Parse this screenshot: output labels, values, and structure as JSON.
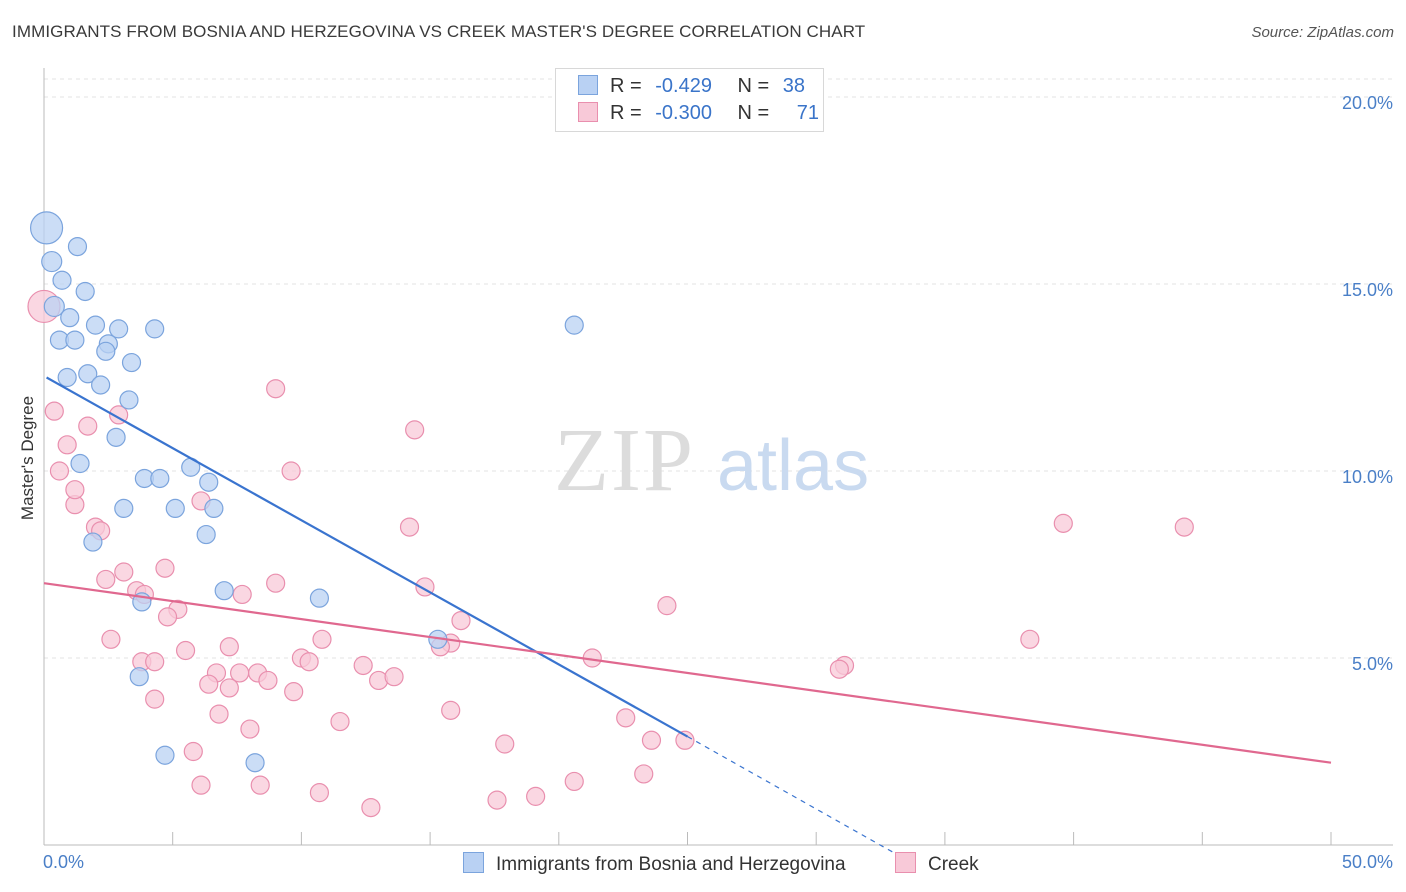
{
  "title": "IMMIGRANTS FROM BOSNIA AND HERZEGOVINA VS CREEK MASTER'S DEGREE CORRELATION CHART",
  "source": "Source: ZipAtlas.com",
  "watermark": {
    "zip": "ZIP",
    "atlas": "atlas"
  },
  "colors": {
    "blue_fill": "#b9d1f3",
    "blue_stroke": "#7ba4dd",
    "blue_line": "#3a74cf",
    "pink_fill": "#f8c9d8",
    "pink_stroke": "#e98fae",
    "pink_line": "#e0688f",
    "grid": "#e3e3e3",
    "tick_text": "#4a7fc7"
  },
  "legend": {
    "r_label": "R =",
    "n_label": "N =",
    "series": [
      {
        "r": "-0.429",
        "n": "38"
      },
      {
        "r": "-0.300",
        "n": "71"
      }
    ]
  },
  "chart_data": {
    "type": "scatter",
    "title": "IMMIGRANTS FROM BOSNIA AND HERZEGOVINA VS CREEK MASTER'S DEGREE CORRELATION CHART",
    "xlabel": "",
    "ylabel": "Master's Degree",
    "xlim": [
      0,
      50
    ],
    "ylim": [
      0,
      20
    ],
    "x_tick_labels": [
      "0.0%",
      "50.0%"
    ],
    "y_ticks": [
      {
        "value": 5,
        "label": "5.0%"
      },
      {
        "value": 10,
        "label": "10.0%"
      },
      {
        "value": 15,
        "label": "15.0%"
      },
      {
        "value": 20,
        "label": "20.0%"
      }
    ],
    "grid": true,
    "series": [
      {
        "name": "Immigrants from Bosnia and Herzegovina",
        "color": "blue",
        "r": -0.429,
        "n": 38,
        "trend": {
          "x1": 0.1,
          "y1": 12.5,
          "x2": 25.0,
          "y2": 2.9,
          "dash_x2": 33.0,
          "dash_y2": -0.2
        },
        "points": [
          [
            0.1,
            16.5,
            16
          ],
          [
            0.3,
            15.6,
            10
          ],
          [
            0.7,
            15.1,
            9
          ],
          [
            1.3,
            16.0,
            9
          ],
          [
            1.6,
            14.8,
            9
          ],
          [
            0.4,
            14.4,
            10
          ],
          [
            1.0,
            14.1,
            9
          ],
          [
            2.0,
            13.9,
            9
          ],
          [
            2.9,
            13.8,
            9
          ],
          [
            4.3,
            13.8,
            9
          ],
          [
            0.6,
            13.5,
            9
          ],
          [
            1.2,
            13.5,
            9
          ],
          [
            2.5,
            13.4,
            9
          ],
          [
            2.4,
            13.2,
            9
          ],
          [
            3.4,
            12.9,
            9
          ],
          [
            1.7,
            12.6,
            9
          ],
          [
            0.9,
            12.5,
            9
          ],
          [
            2.2,
            12.3,
            9
          ],
          [
            3.3,
            11.9,
            9
          ],
          [
            2.8,
            10.9,
            9
          ],
          [
            1.4,
            10.2,
            9
          ],
          [
            5.7,
            10.1,
            9
          ],
          [
            6.4,
            9.7,
            9
          ],
          [
            3.9,
            9.8,
            9
          ],
          [
            4.5,
            9.8,
            9
          ],
          [
            3.1,
            9.0,
            9
          ],
          [
            5.1,
            9.0,
            9
          ],
          [
            6.6,
            9.0,
            9
          ],
          [
            6.3,
            8.3,
            9
          ],
          [
            1.9,
            8.1,
            9
          ],
          [
            7.0,
            6.8,
            9
          ],
          [
            3.8,
            6.5,
            9
          ],
          [
            10.7,
            6.6,
            9
          ],
          [
            15.3,
            5.5,
            9
          ],
          [
            3.7,
            4.5,
            9
          ],
          [
            4.7,
            2.4,
            9
          ],
          [
            8.2,
            2.2,
            9
          ],
          [
            20.6,
            13.9,
            9
          ]
        ]
      },
      {
        "name": "Creek",
        "color": "pink",
        "r": -0.3,
        "n": 71,
        "trend": {
          "x1": 0.0,
          "y1": 7.0,
          "x2": 50.0,
          "y2": 2.2
        },
        "points": [
          [
            0.0,
            14.4,
            16
          ],
          [
            0.4,
            11.6,
            9
          ],
          [
            1.7,
            11.2,
            9
          ],
          [
            2.9,
            11.5,
            9
          ],
          [
            0.9,
            10.7,
            9
          ],
          [
            0.6,
            10.0,
            9
          ],
          [
            1.2,
            9.1,
            9
          ],
          [
            1.2,
            9.5,
            9
          ],
          [
            2.0,
            8.5,
            9
          ],
          [
            2.2,
            8.4,
            9
          ],
          [
            9.0,
            12.2,
            9
          ],
          [
            14.4,
            11.1,
            9
          ],
          [
            9.6,
            10.0,
            9
          ],
          [
            6.1,
            9.2,
            9
          ],
          [
            14.2,
            8.5,
            9
          ],
          [
            2.4,
            7.1,
            9
          ],
          [
            3.1,
            7.3,
            9
          ],
          [
            4.7,
            7.4,
            9
          ],
          [
            3.6,
            6.8,
            9
          ],
          [
            3.9,
            6.7,
            9
          ],
          [
            9.0,
            7.0,
            9
          ],
          [
            7.7,
            6.7,
            9
          ],
          [
            14.8,
            6.9,
            9
          ],
          [
            5.2,
            6.3,
            9
          ],
          [
            4.8,
            6.1,
            9
          ],
          [
            16.2,
            6.0,
            9
          ],
          [
            24.2,
            6.4,
            9
          ],
          [
            2.6,
            5.5,
            9
          ],
          [
            5.5,
            5.2,
            9
          ],
          [
            7.2,
            5.3,
            9
          ],
          [
            10.8,
            5.5,
            9
          ],
          [
            15.8,
            5.4,
            9
          ],
          [
            15.4,
            5.3,
            9
          ],
          [
            3.8,
            4.9,
            9
          ],
          [
            4.3,
            4.9,
            9
          ],
          [
            10.0,
            5.0,
            9
          ],
          [
            10.3,
            4.9,
            9
          ],
          [
            21.3,
            5.0,
            9
          ],
          [
            6.7,
            4.6,
            9
          ],
          [
            7.6,
            4.6,
            9
          ],
          [
            8.3,
            4.6,
            9
          ],
          [
            12.4,
            4.8,
            9
          ],
          [
            6.4,
            4.3,
            9
          ],
          [
            7.2,
            4.2,
            9
          ],
          [
            8.7,
            4.4,
            9
          ],
          [
            13.0,
            4.4,
            9
          ],
          [
            13.6,
            4.5,
            9
          ],
          [
            31.1,
            4.8,
            9
          ],
          [
            4.3,
            3.9,
            9
          ],
          [
            9.7,
            4.1,
            9
          ],
          [
            6.8,
            3.5,
            9
          ],
          [
            11.5,
            3.3,
            9
          ],
          [
            15.8,
            3.6,
            9
          ],
          [
            8.0,
            3.1,
            9
          ],
          [
            17.9,
            2.7,
            9
          ],
          [
            22.6,
            3.4,
            9
          ],
          [
            23.6,
            2.8,
            9
          ],
          [
            24.9,
            2.8,
            9
          ],
          [
            5.8,
            2.5,
            9
          ],
          [
            6.1,
            1.6,
            9
          ],
          [
            8.4,
            1.6,
            9
          ],
          [
            10.7,
            1.4,
            9
          ],
          [
            12.7,
            1.0,
            9
          ],
          [
            17.6,
            1.2,
            9
          ],
          [
            19.1,
            1.3,
            9
          ],
          [
            20.6,
            1.7,
            9
          ],
          [
            23.3,
            1.9,
            9
          ],
          [
            39.6,
            8.6,
            9
          ],
          [
            44.3,
            8.5,
            9
          ],
          [
            38.3,
            5.5,
            9
          ],
          [
            30.9,
            4.7,
            9
          ]
        ]
      }
    ]
  },
  "bottom_legend": [
    {
      "label": "Immigrants from Bosnia and Herzegovina"
    },
    {
      "label": "Creek"
    }
  ]
}
